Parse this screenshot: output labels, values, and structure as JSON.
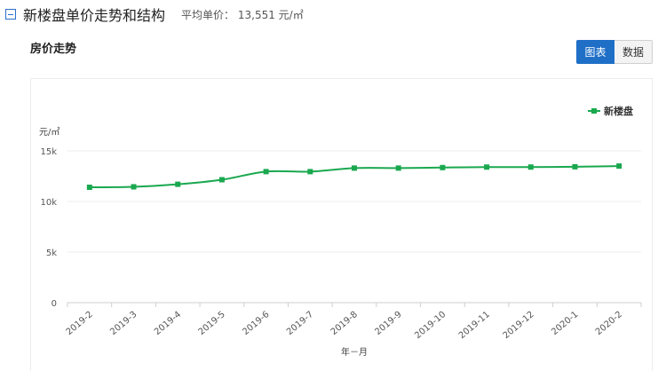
{
  "header": {
    "title": "新楼盘单价走势和结构",
    "avg_label": "平均单价：",
    "avg_value": "13,551 元/㎡"
  },
  "chart_title": "房价走势",
  "toggle": {
    "chart_label": "图表",
    "data_label": "数据"
  },
  "colors": {
    "series": "#1aa84f",
    "accent": "#1f6fc7"
  },
  "chart_data": {
    "type": "line",
    "ylabel": "元/㎡",
    "xlabel": "年－月",
    "ylim": [
      0,
      15000
    ],
    "yticks": [
      0,
      5000,
      10000,
      15000
    ],
    "ytick_labels": [
      "0",
      "5k",
      "10k",
      "15k"
    ],
    "grid": true,
    "legend": "top-right",
    "categories": [
      "2019-2",
      "2019-3",
      "2019-4",
      "2019-5",
      "2019-6",
      "2019-7",
      "2019-8",
      "2019-9",
      "2019-10",
      "2019-11",
      "2019-12",
      "2020-1",
      "2020-2"
    ],
    "series": [
      {
        "name": "新楼盘",
        "values": [
          11400,
          11450,
          11700,
          12150,
          12950,
          12950,
          13300,
          13300,
          13350,
          13400,
          13400,
          13430,
          13500
        ]
      }
    ]
  }
}
